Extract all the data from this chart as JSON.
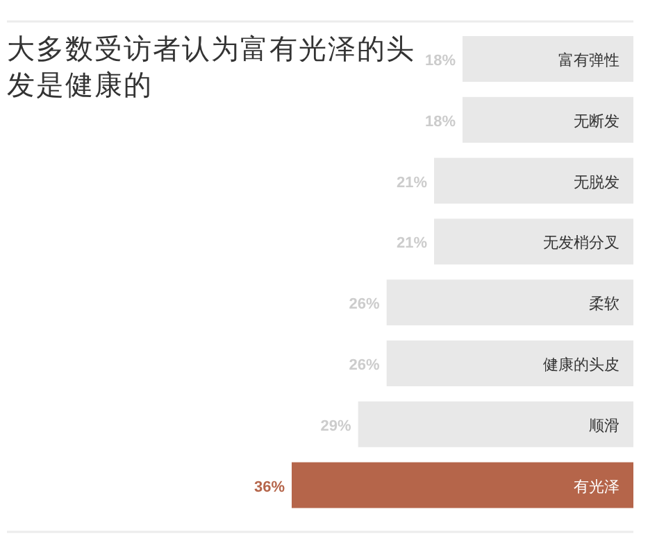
{
  "chart_data": {
    "type": "bar",
    "orientation": "horizontal",
    "title": "大多数受访者认为富有光泽的头发是健康的",
    "categories": [
      "富有弹性",
      "无断发",
      "无脱发",
      "无发梢分叉",
      "柔软",
      "健康的头皮",
      "顺滑",
      "有光泽"
    ],
    "values": [
      18,
      18,
      21,
      21,
      26,
      26,
      29,
      36
    ],
    "colors": [
      "#e8e8e8",
      "#e8e8e8",
      "#e8e8e8",
      "#e8e8e8",
      "#e8e8e8",
      "#e8e8e8",
      "#e8e8e8",
      "#b5654a"
    ],
    "value_labels": [
      "18%",
      "18%",
      "21%",
      "21%",
      "26%",
      "26%",
      "29%",
      "36%"
    ]
  }
}
